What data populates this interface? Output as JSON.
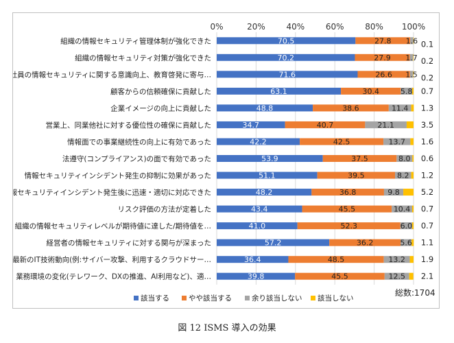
{
  "chart_data": {
    "type": "bar",
    "orientation": "horizontal",
    "stacked": true,
    "xlim": [
      0,
      100
    ],
    "x_ticks": [
      "0%",
      "20%",
      "40%",
      "60%",
      "80%",
      "100%"
    ],
    "categories": [
      "組織の情報セキュリティ管理体制が強化できた",
      "組織の情報セキュリティ対策が強化できた",
      "社員の情報セキュリティに関する意識向上、教育啓発に寄与…",
      "顧客からの信頼確保に貢献した",
      "企業イメージの向上に貢献した",
      "営業上、同業他社に対する優位性の確保に貢献した",
      "情報面での事業継続性の向上に有効であった",
      "法遵守(コンプライアンス)の面で有効であった",
      "情報セキュリティインシデント発生の抑制に効果があった",
      "情報セキュリティインシデント発生後に迅速・適切に対応できた",
      "リスク評価の方法が定着した",
      "組織の情報セキュリティレベルが期待値に達した/期待値を…",
      "経営者の情報セキュリティに対する関与が深まった",
      "最新のIT技術動向(例:サイバー攻撃、利用するクラウドサー…",
      "業務環境の変化(テレワーク、DXの推進、AI利用など)、適…"
    ],
    "series": [
      {
        "name": "該当する",
        "color": "#4472c4",
        "values": [
          70.5,
          70.2,
          71.6,
          63.1,
          48.8,
          34.7,
          42.2,
          53.9,
          51.1,
          48.2,
          43.4,
          41.0,
          57.2,
          36.4,
          39.8
        ]
      },
      {
        "name": "やや該当する",
        "color": "#ed7d31",
        "values": [
          27.8,
          27.9,
          26.6,
          30.4,
          38.6,
          40.7,
          42.5,
          37.5,
          39.5,
          36.8,
          45.5,
          52.3,
          36.2,
          48.5,
          45.5
        ]
      },
      {
        "name": "余り該当しない",
        "color": "#a5a5a5",
        "values": [
          1.6,
          1.7,
          1.5,
          5.8,
          11.4,
          21.1,
          13.7,
          8.0,
          8.2,
          9.8,
          10.4,
          6.0,
          5.6,
          13.2,
          12.5
        ]
      },
      {
        "name": "該当しない",
        "color": "#ffc000",
        "values": [
          0.1,
          0.2,
          0.2,
          0.7,
          1.3,
          3.5,
          1.6,
          0.6,
          1.2,
          5.2,
          0.7,
          0.7,
          1.1,
          1.9,
          2.1
        ]
      }
    ],
    "value_labels": {
      "該当する": [
        "70.5",
        "70.2",
        "71.6",
        "63.1",
        "48.8",
        "34.7",
        "42.2",
        "53.9",
        "51.1",
        "48.2",
        "43.4",
        "41.0",
        "57.2",
        "36.4",
        "39.8"
      ],
      "やや該当する": [
        "27.8",
        "27.9",
        "26.6",
        "30.4",
        "38.6",
        "40.7",
        "42.5",
        "37.5",
        "39.5",
        "36.8",
        "45.5",
        "52.3",
        "36.2",
        "48.5",
        "45.5"
      ],
      "余り該当しない": [
        "1.6",
        "1.7",
        "1.5",
        "5.8",
        "11.4",
        "21.1",
        "13.7",
        "8.0",
        "8.2",
        "9.8",
        "10.4",
        "6.0",
        "5.6",
        "13.2",
        "12.5"
      ],
      "該当しない": [
        "0.1",
        "0.2",
        "0.2",
        "0.7",
        "1.3",
        "3.5",
        "1.6",
        "0.6",
        "1.2",
        "5.2",
        "0.7",
        "0.7",
        "1.1",
        "1.9",
        "2.1"
      ]
    },
    "legend": [
      "該当する",
      "やや該当する",
      "余り該当しない",
      "該当しない"
    ],
    "legend_position": "bottom",
    "total_label": "総数:1704",
    "grid": true
  },
  "caption": "図 12  ISMS 導入の効果"
}
